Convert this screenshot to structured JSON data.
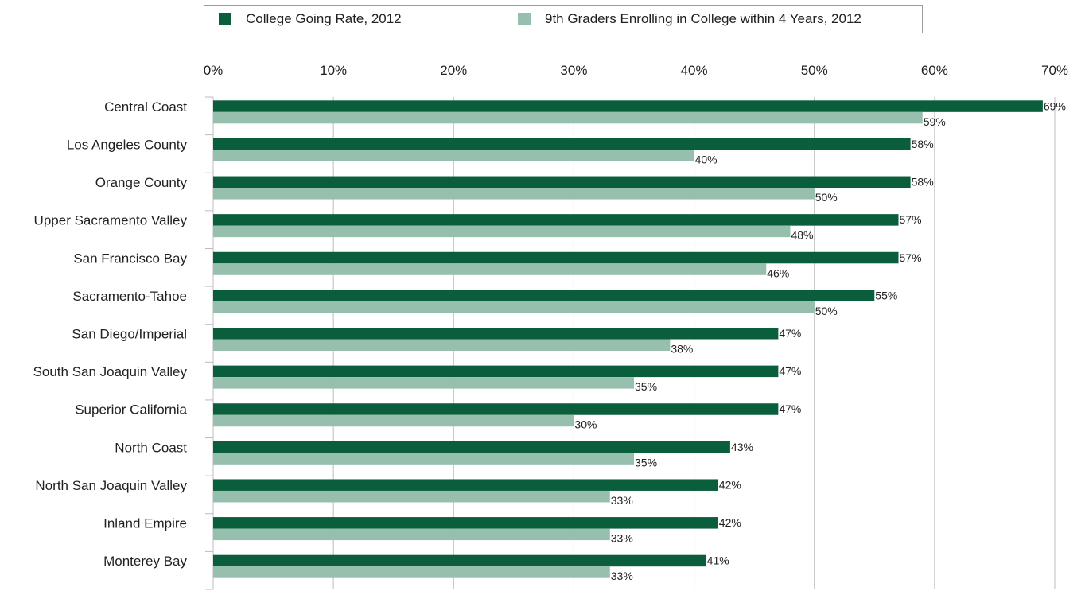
{
  "colors": {
    "series1": "#0b5e3c",
    "series2": "#96bfae",
    "grid": "#bcbcbc",
    "text": "#231f20"
  },
  "chart_data": {
    "type": "bar",
    "orientation": "horizontal",
    "title": "",
    "xlabel": "",
    "ylabel": "",
    "xlim": [
      0,
      70
    ],
    "x_ticks": [
      0,
      10,
      20,
      30,
      40,
      50,
      60,
      70
    ],
    "x_tick_labels": [
      "0%",
      "10%",
      "20%",
      "30%",
      "40%",
      "50%",
      "60%",
      "70%"
    ],
    "x_axis_position": "top",
    "grid": true,
    "legend_placement": "top",
    "categories": [
      "Central Coast",
      "Los Angeles County",
      "Orange County",
      "Upper Sacramento Valley",
      "San Francisco Bay",
      "Sacramento-Tahoe",
      "San Diego/Imperial",
      "South San Joaquin Valley",
      "Superior California",
      "North Coast",
      "North San Joaquin Valley",
      "Inland Empire",
      "Monterey Bay"
    ],
    "series": [
      {
        "name": "College Going Rate, 2012",
        "values": [
          69,
          58,
          58,
          57,
          57,
          55,
          47,
          47,
          47,
          43,
          42,
          42,
          41
        ],
        "labels": [
          "69%",
          "58%",
          "58%",
          "57%",
          "57%",
          "55%",
          "47%",
          "47%",
          "47%",
          "43%",
          "42%",
          "42%",
          "41%"
        ]
      },
      {
        "name": "9th Graders Enrolling in College within 4 Years, 2012",
        "values": [
          59,
          40,
          50,
          48,
          46,
          50,
          38,
          35,
          30,
          35,
          33,
          33,
          33
        ],
        "labels": [
          "59%",
          "40%",
          "50%",
          "48%",
          "46%",
          "50%",
          "38%",
          "35%",
          "30%",
          "35%",
          "33%",
          "33%",
          "33%"
        ]
      }
    ]
  }
}
